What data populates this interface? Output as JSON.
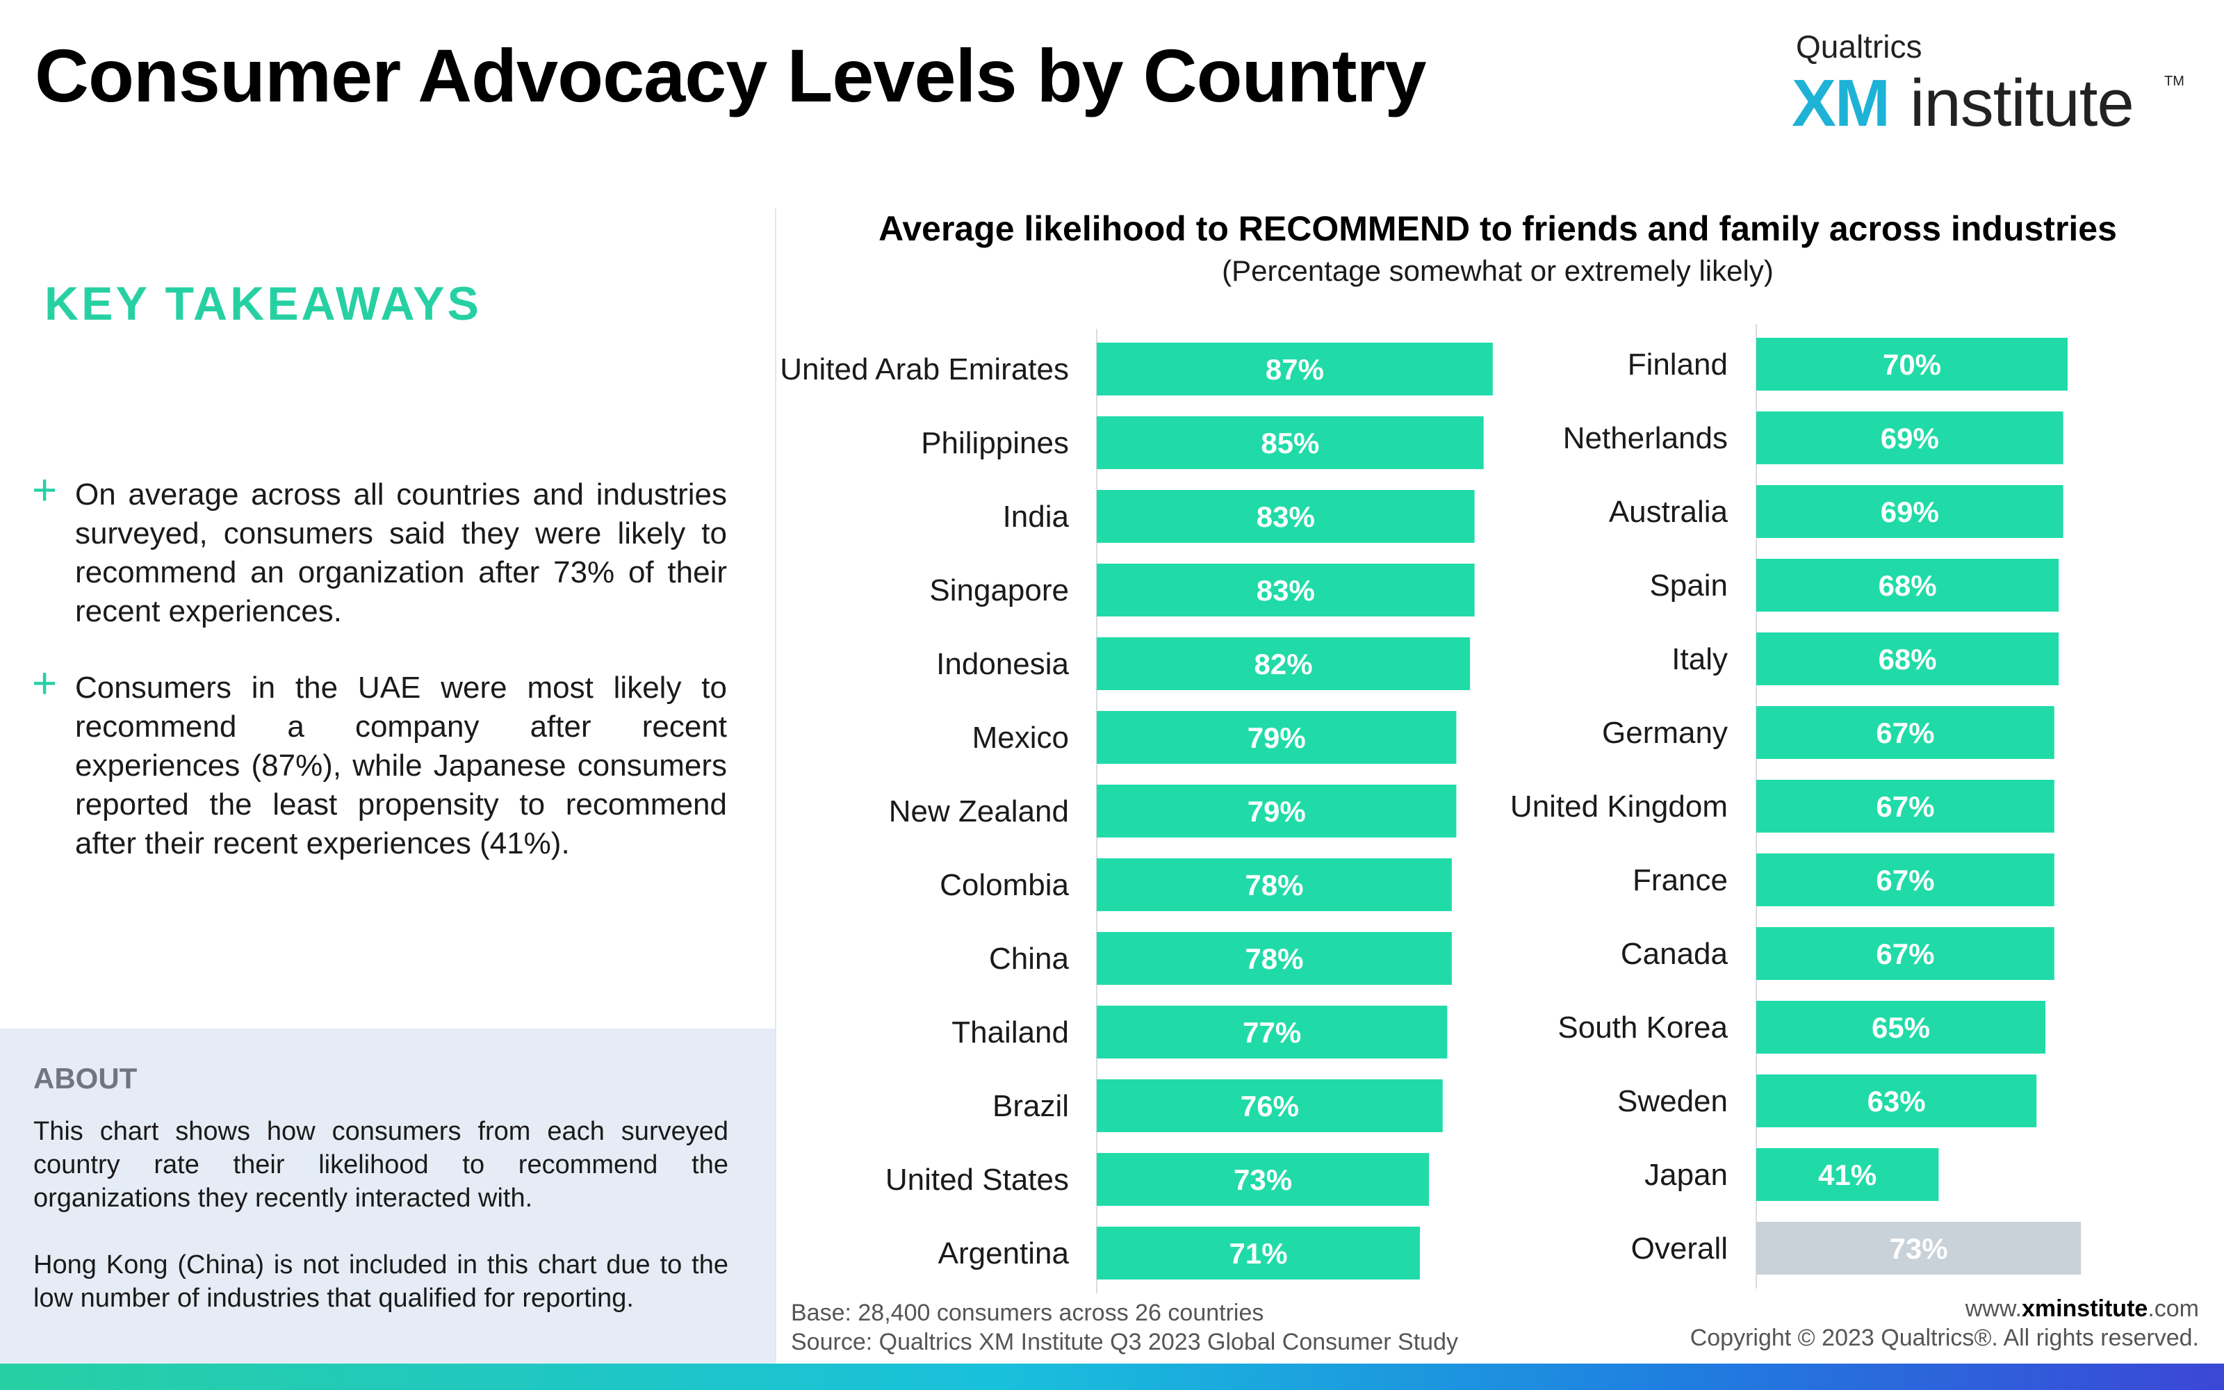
{
  "header": {
    "title": "Consumer Advocacy Levels by Country",
    "logo": {
      "brand": "Qualtrics",
      "xm": "XM",
      "institute": "institute",
      "tm": "TM"
    }
  },
  "takeaways": {
    "title": "KEY TAKEAWAYS",
    "items": [
      "On average across all countries and industries surveyed, consumers said they were likely to recommend an organization after 73% of their recent experiences.",
      "Consumers in the UAE were most likely to recommend a company after recent experiences (87%), while Japanese consumers reported the least propensity to recommend after their recent experiences (41%)."
    ]
  },
  "about": {
    "title": "ABOUT",
    "paragraphs": [
      "This chart shows how consumers from each surveyed country rate their likelihood to recommend the organizations they recently interacted with.",
      "Hong Kong (China) is not included in this chart due to the low number of industries that qualified for reporting."
    ]
  },
  "footer": {
    "base": "Base: 28,400 consumers across 26 countries",
    "source": "Source: Qualtrics XM Institute Q3 2023 Global Consumer Study",
    "web_prefix": "www.",
    "web_bold": "xminstitute",
    "web_suffix": ".com",
    "copyright": "Copyright © 2023 Qualtrics®. All rights reserved."
  },
  "colors": {
    "bar": "#20dba8",
    "overall": "#c9d2d8",
    "accent": "#27d0a3",
    "label": "#ffffff"
  },
  "chart_data": {
    "type": "bar",
    "orientation": "horizontal",
    "title": "Average likelihood to RECOMMEND to friends and family across industries",
    "subtitle": "(Percentage somewhat or extremely likely)",
    "unit": "%",
    "xlim": [
      0,
      100
    ],
    "panels": [
      {
        "categories": [
          "United Arab Emirates",
          "Philippines",
          "India",
          "Singapore",
          "Indonesia",
          "Mexico",
          "New Zealand",
          "Colombia",
          "China",
          "Thailand",
          "Brazil",
          "United States",
          "Argentina"
        ],
        "values": [
          87,
          85,
          83,
          83,
          82,
          79,
          79,
          78,
          78,
          77,
          76,
          73,
          71
        ]
      },
      {
        "categories": [
          "Finland",
          "Netherlands",
          "Australia",
          "Spain",
          "Italy",
          "Germany",
          "United Kingdom",
          "France",
          "Canada",
          "South Korea",
          "Sweden",
          "Japan",
          "Overall"
        ],
        "values": [
          70,
          69,
          69,
          68,
          68,
          67,
          67,
          67,
          67,
          65,
          63,
          41,
          73
        ]
      }
    ],
    "highlight_category": "Overall"
  }
}
